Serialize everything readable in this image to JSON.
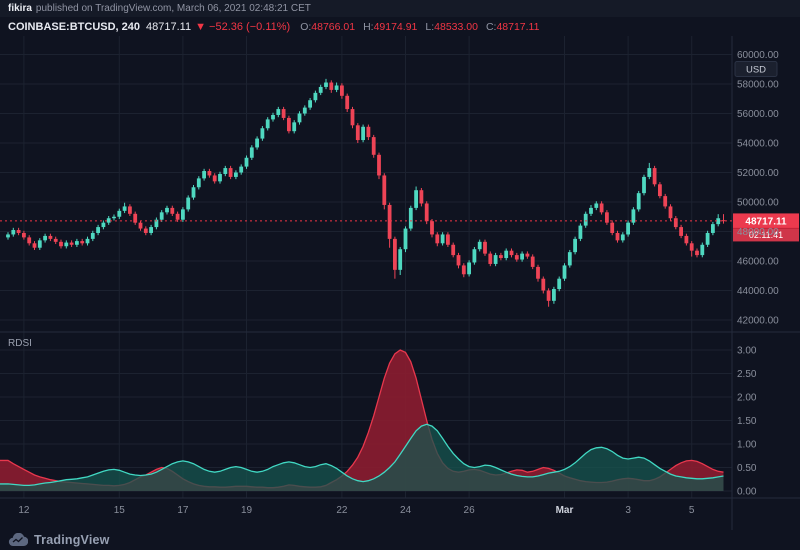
{
  "header": {
    "author": "fikira",
    "published": "published on TradingView.com, March 06, 2021 02:48:21 CET",
    "symbol": "COINBASE:BTCUSD, 240",
    "last_price": "48717.11",
    "change": "▼ −52.36 (−0.11%)",
    "ohlc": [
      {
        "label": "O:",
        "value": "48766.01"
      },
      {
        "label": "H:",
        "value": "49174.91"
      },
      {
        "label": "L:",
        "value": "48533.00"
      },
      {
        "label": "C:",
        "value": "48717.11"
      }
    ]
  },
  "price_axis": {
    "unit": "USD",
    "labels": [
      "60000.00",
      "58000.00",
      "56000.00",
      "54000.00",
      "52000.00",
      "50000.00",
      "48000.00",
      "46000.00",
      "44000.00",
      "42000.00"
    ]
  },
  "price_label": {
    "price": "48717.11",
    "countdown": "02:11:41"
  },
  "indicator_pane": {
    "title": "RDSI",
    "axis": [
      "3.00",
      "2.50",
      "2.00",
      "1.50",
      "1.00",
      "0.50",
      "0.00"
    ]
  },
  "footer": {
    "brand": "TradingView"
  },
  "colors": {
    "background": "#0f1320",
    "topbar_bg": "#151a27",
    "grid": "#1c2230",
    "separator": "#242b3c",
    "axis_text": "#8a8f9c",
    "month_text": "#ced2dc",
    "up": "#4fd8c0",
    "down": "#ee4456",
    "last_price_bg": "#eb3a4e",
    "last_price_line": "#f23645",
    "red_line": "#e8374d",
    "red_fill": "#8c1d30",
    "teal_line": "#41d8c3",
    "teal_fill": "#17564f",
    "badge_bg": "#1b202e",
    "badge_border": "#2b3244"
  },
  "chart_data": {
    "type": "candlestick",
    "symbol": "COINBASE:BTCUSD",
    "interval_minutes": 240,
    "price_range": [
      42000,
      60000
    ],
    "indicator_range": [
      0,
      3
    ],
    "time_ticks": [
      {
        "i": 3,
        "label": "12",
        "major": false
      },
      {
        "i": 21,
        "label": "15",
        "major": false
      },
      {
        "i": 33,
        "label": "17",
        "major": false
      },
      {
        "i": 45,
        "label": "19",
        "major": false
      },
      {
        "i": 63,
        "label": "22",
        "major": false
      },
      {
        "i": 75,
        "label": "24",
        "major": false
      },
      {
        "i": 87,
        "label": "26",
        "major": false
      },
      {
        "i": 105,
        "label": "Mar",
        "major": true
      },
      {
        "i": 117,
        "label": "3",
        "major": false
      },
      {
        "i": 129,
        "label": "5",
        "major": false
      }
    ],
    "candles": [
      [
        47600,
        47950,
        47450,
        47800
      ],
      [
        47800,
        48250,
        47650,
        48100
      ],
      [
        48100,
        48250,
        47750,
        47900
      ],
      [
        47900,
        48050,
        47450,
        47600
      ],
      [
        47600,
        47750,
        47050,
        47200
      ],
      [
        47200,
        47350,
        46750,
        46900
      ],
      [
        46900,
        47550,
        46750,
        47400
      ],
      [
        47400,
        47850,
        47250,
        47700
      ],
      [
        47700,
        47850,
        47350,
        47500
      ],
      [
        47500,
        47650,
        47150,
        47300
      ],
      [
        47300,
        47450,
        46850,
        47000
      ],
      [
        47000,
        47400,
        46850,
        47250
      ],
      [
        47250,
        47400,
        46950,
        47100
      ],
      [
        47100,
        47500,
        46950,
        47350
      ],
      [
        47350,
        47500,
        47050,
        47200
      ],
      [
        47200,
        47650,
        47050,
        47500
      ],
      [
        47500,
        48050,
        47350,
        47900
      ],
      [
        47900,
        48450,
        47750,
        48300
      ],
      [
        48300,
        48750,
        48150,
        48600
      ],
      [
        48600,
        49050,
        48450,
        48900
      ],
      [
        48900,
        49150,
        48750,
        49000
      ],
      [
        49000,
        49550,
        48850,
        49400
      ],
      [
        49400,
        49950,
        49250,
        49700
      ],
      [
        49700,
        49850,
        49050,
        49200
      ],
      [
        49200,
        49350,
        48450,
        48600
      ],
      [
        48600,
        48750,
        48050,
        48200
      ],
      [
        48200,
        48350,
        47750,
        47900
      ],
      [
        47900,
        48450,
        47750,
        48300
      ],
      [
        48300,
        48950,
        48150,
        48800
      ],
      [
        48800,
        49450,
        48650,
        49300
      ],
      [
        49300,
        49750,
        49150,
        49600
      ],
      [
        49600,
        49750,
        49050,
        49200
      ],
      [
        49200,
        49350,
        48650,
        48800
      ],
      [
        48800,
        49650,
        48650,
        49500
      ],
      [
        49500,
        50450,
        49350,
        50300
      ],
      [
        50300,
        51150,
        50150,
        51000
      ],
      [
        51000,
        51750,
        50850,
        51600
      ],
      [
        51600,
        52250,
        51450,
        52100
      ],
      [
        52100,
        52250,
        51650,
        51800
      ],
      [
        51800,
        51950,
        51250,
        51400
      ],
      [
        51400,
        52050,
        51250,
        51900
      ],
      [
        51900,
        52450,
        51750,
        52300
      ],
      [
        52300,
        52450,
        51550,
        51700
      ],
      [
        51700,
        52150,
        51550,
        52000
      ],
      [
        52000,
        52550,
        51850,
        52400
      ],
      [
        52400,
        53150,
        52250,
        53000
      ],
      [
        53000,
        53850,
        52850,
        53700
      ],
      [
        53700,
        54450,
        53550,
        54300
      ],
      [
        54300,
        55150,
        54150,
        55000
      ],
      [
        55000,
        55750,
        54850,
        55600
      ],
      [
        55600,
        56050,
        55450,
        55900
      ],
      [
        55900,
        56450,
        55750,
        56300
      ],
      [
        56300,
        56450,
        55550,
        55700
      ],
      [
        55700,
        55850,
        54650,
        54800
      ],
      [
        54800,
        55550,
        54650,
        55400
      ],
      [
        55400,
        56150,
        55250,
        56000
      ],
      [
        56000,
        56550,
        55850,
        56400
      ],
      [
        56400,
        57050,
        56250,
        56900
      ],
      [
        56900,
        57550,
        56750,
        57400
      ],
      [
        57400,
        57950,
        57250,
        57800
      ],
      [
        57800,
        58350,
        57650,
        58100
      ],
      [
        58100,
        58250,
        57400,
        57600
      ],
      [
        57600,
        58100,
        57450,
        57900
      ],
      [
        57900,
        58050,
        57000,
        57200
      ],
      [
        57200,
        57350,
        56100,
        56300
      ],
      [
        56300,
        56450,
        55000,
        55200
      ],
      [
        55200,
        55350,
        54000,
        54200
      ],
      [
        54200,
        55250,
        54050,
        55100
      ],
      [
        55100,
        55250,
        54200,
        54400
      ],
      [
        54400,
        54550,
        53000,
        53200
      ],
      [
        53200,
        53350,
        51550,
        51800
      ],
      [
        51800,
        51950,
        49500,
        49800
      ],
      [
        49800,
        49950,
        46900,
        47500
      ],
      [
        47500,
        47650,
        44800,
        45400
      ],
      [
        45400,
        46950,
        45050,
        46800
      ],
      [
        46800,
        48350,
        46600,
        48200
      ],
      [
        48200,
        49750,
        48050,
        49600
      ],
      [
        49600,
        51050,
        49450,
        50800
      ],
      [
        50800,
        50950,
        49700,
        49900
      ],
      [
        49900,
        50050,
        48500,
        48700
      ],
      [
        48700,
        48850,
        47600,
        47800
      ],
      [
        47800,
        47950,
        47000,
        47200
      ],
      [
        47200,
        47950,
        47050,
        47800
      ],
      [
        47800,
        47950,
        46950,
        47100
      ],
      [
        47100,
        47250,
        46250,
        46400
      ],
      [
        46400,
        46550,
        45500,
        45700
      ],
      [
        45700,
        45850,
        44900,
        45100
      ],
      [
        45100,
        46050,
        44950,
        45900
      ],
      [
        45900,
        46950,
        45750,
        46800
      ],
      [
        46800,
        47450,
        46650,
        47300
      ],
      [
        47300,
        47450,
        46350,
        46500
      ],
      [
        46500,
        46650,
        45650,
        45800
      ],
      [
        45800,
        46550,
        45650,
        46400
      ],
      [
        46400,
        46550,
        46050,
        46200
      ],
      [
        46200,
        46850,
        46050,
        46700
      ],
      [
        46700,
        46850,
        46250,
        46400
      ],
      [
        46400,
        46550,
        45950,
        46100
      ],
      [
        46100,
        46650,
        45950,
        46500
      ],
      [
        46500,
        46650,
        46150,
        46300
      ],
      [
        46300,
        46450,
        45450,
        45600
      ],
      [
        45600,
        45750,
        44600,
        44800
      ],
      [
        44800,
        44950,
        43800,
        44000
      ],
      [
        44000,
        44150,
        42900,
        43300
      ],
      [
        43300,
        44250,
        43100,
        44100
      ],
      [
        44100,
        44950,
        43950,
        44800
      ],
      [
        44800,
        45850,
        44650,
        45700
      ],
      [
        45700,
        46750,
        45550,
        46600
      ],
      [
        46600,
        47650,
        46450,
        47500
      ],
      [
        47500,
        48550,
        47350,
        48400
      ],
      [
        48400,
        49350,
        48250,
        49200
      ],
      [
        49200,
        49800,
        49050,
        49600
      ],
      [
        49600,
        50050,
        49450,
        49900
      ],
      [
        49900,
        50050,
        49150,
        49300
      ],
      [
        49300,
        49450,
        48450,
        48600
      ],
      [
        48600,
        48750,
        47750,
        47900
      ],
      [
        47900,
        48050,
        47250,
        47400
      ],
      [
        47400,
        47950,
        47250,
        47800
      ],
      [
        47800,
        48750,
        47650,
        48600
      ],
      [
        48600,
        49650,
        48450,
        49500
      ],
      [
        49500,
        50750,
        49350,
        50600
      ],
      [
        50600,
        51850,
        50450,
        51700
      ],
      [
        51700,
        52650,
        51550,
        52300
      ],
      [
        52300,
        52450,
        51050,
        51200
      ],
      [
        51200,
        51350,
        50250,
        50400
      ],
      [
        50400,
        50550,
        49550,
        49700
      ],
      [
        49700,
        49850,
        48750,
        48900
      ],
      [
        48900,
        49050,
        48150,
        48300
      ],
      [
        48300,
        48450,
        47550,
        47700
      ],
      [
        47700,
        47850,
        47050,
        47200
      ],
      [
        47200,
        47350,
        46300,
        46700
      ],
      [
        46700,
        46850,
        46250,
        46400
      ],
      [
        46400,
        47250,
        46250,
        47100
      ],
      [
        47100,
        48050,
        46950,
        47900
      ],
      [
        47900,
        48650,
        47750,
        48500
      ],
      [
        48500,
        49175,
        48350,
        48900
      ],
      [
        48766.01,
        49174.91,
        48533.0,
        48717.11
      ]
    ],
    "indicator": {
      "name": "RDSI",
      "type": "area",
      "series": [
        {
          "name": "red",
          "values": [
            0.65,
            0.58,
            0.52,
            0.46,
            0.4,
            0.34,
            0.3,
            0.27,
            0.24,
            0.22,
            0.2,
            0.19,
            0.18,
            0.17,
            0.16,
            0.15,
            0.14,
            0.13,
            0.12,
            0.12,
            0.11,
            0.12,
            0.14,
            0.18,
            0.24,
            0.3,
            0.34,
            0.4,
            0.46,
            0.5,
            0.48,
            0.42,
            0.34,
            0.26,
            0.2,
            0.15,
            0.12,
            0.1,
            0.09,
            0.09,
            0.08,
            0.08,
            0.09,
            0.1,
            0.1,
            0.1,
            0.09,
            0.08,
            0.08,
            0.07,
            0.07,
            0.08,
            0.1,
            0.13,
            0.12,
            0.1,
            0.09,
            0.08,
            0.08,
            0.09,
            0.12,
            0.18,
            0.24,
            0.32,
            0.42,
            0.55,
            0.72,
            0.95,
            1.25,
            1.6,
            2.0,
            2.4,
            2.72,
            2.92,
            3.0,
            2.95,
            2.75,
            2.4,
            1.95,
            1.5,
            1.1,
            0.8,
            0.6,
            0.48,
            0.42,
            0.4,
            0.42,
            0.45,
            0.46,
            0.44,
            0.4,
            0.36,
            0.34,
            0.35,
            0.38,
            0.42,
            0.45,
            0.44,
            0.4,
            0.42,
            0.46,
            0.5,
            0.48,
            0.44,
            0.38,
            0.32,
            0.28,
            0.25,
            0.22,
            0.2,
            0.19,
            0.18,
            0.18,
            0.19,
            0.21,
            0.24,
            0.26,
            0.27,
            0.26,
            0.24,
            0.22,
            0.22,
            0.25,
            0.3,
            0.38,
            0.46,
            0.54,
            0.6,
            0.64,
            0.65,
            0.63,
            0.58,
            0.52,
            0.46,
            0.42,
            0.4
          ]
        },
        {
          "name": "teal",
          "values": [
            0.15,
            0.14,
            0.13,
            0.12,
            0.12,
            0.13,
            0.15,
            0.17,
            0.18,
            0.2,
            0.22,
            0.24,
            0.25,
            0.26,
            0.28,
            0.3,
            0.34,
            0.38,
            0.42,
            0.45,
            0.46,
            0.44,
            0.4,
            0.36,
            0.34,
            0.33,
            0.34,
            0.36,
            0.4,
            0.46,
            0.52,
            0.58,
            0.62,
            0.64,
            0.62,
            0.58,
            0.52,
            0.46,
            0.42,
            0.4,
            0.42,
            0.46,
            0.5,
            0.52,
            0.5,
            0.46,
            0.42,
            0.4,
            0.42,
            0.46,
            0.52,
            0.56,
            0.6,
            0.62,
            0.6,
            0.56,
            0.52,
            0.5,
            0.52,
            0.56,
            0.58,
            0.54,
            0.48,
            0.4,
            0.32,
            0.26,
            0.22,
            0.2,
            0.22,
            0.26,
            0.32,
            0.4,
            0.5,
            0.62,
            0.78,
            0.95,
            1.12,
            1.28,
            1.38,
            1.42,
            1.38,
            1.28,
            1.12,
            0.95,
            0.8,
            0.68,
            0.58,
            0.52,
            0.5,
            0.52,
            0.55,
            0.54,
            0.5,
            0.45,
            0.4,
            0.36,
            0.33,
            0.31,
            0.3,
            0.3,
            0.32,
            0.35,
            0.38,
            0.4,
            0.42,
            0.46,
            0.52,
            0.6,
            0.7,
            0.8,
            0.88,
            0.92,
            0.93,
            0.9,
            0.84,
            0.76,
            0.7,
            0.68,
            0.7,
            0.72,
            0.7,
            0.64,
            0.56,
            0.48,
            0.42,
            0.36,
            0.32,
            0.3,
            0.28,
            0.27,
            0.26,
            0.26,
            0.27,
            0.28,
            0.3,
            0.32
          ]
        }
      ]
    }
  }
}
